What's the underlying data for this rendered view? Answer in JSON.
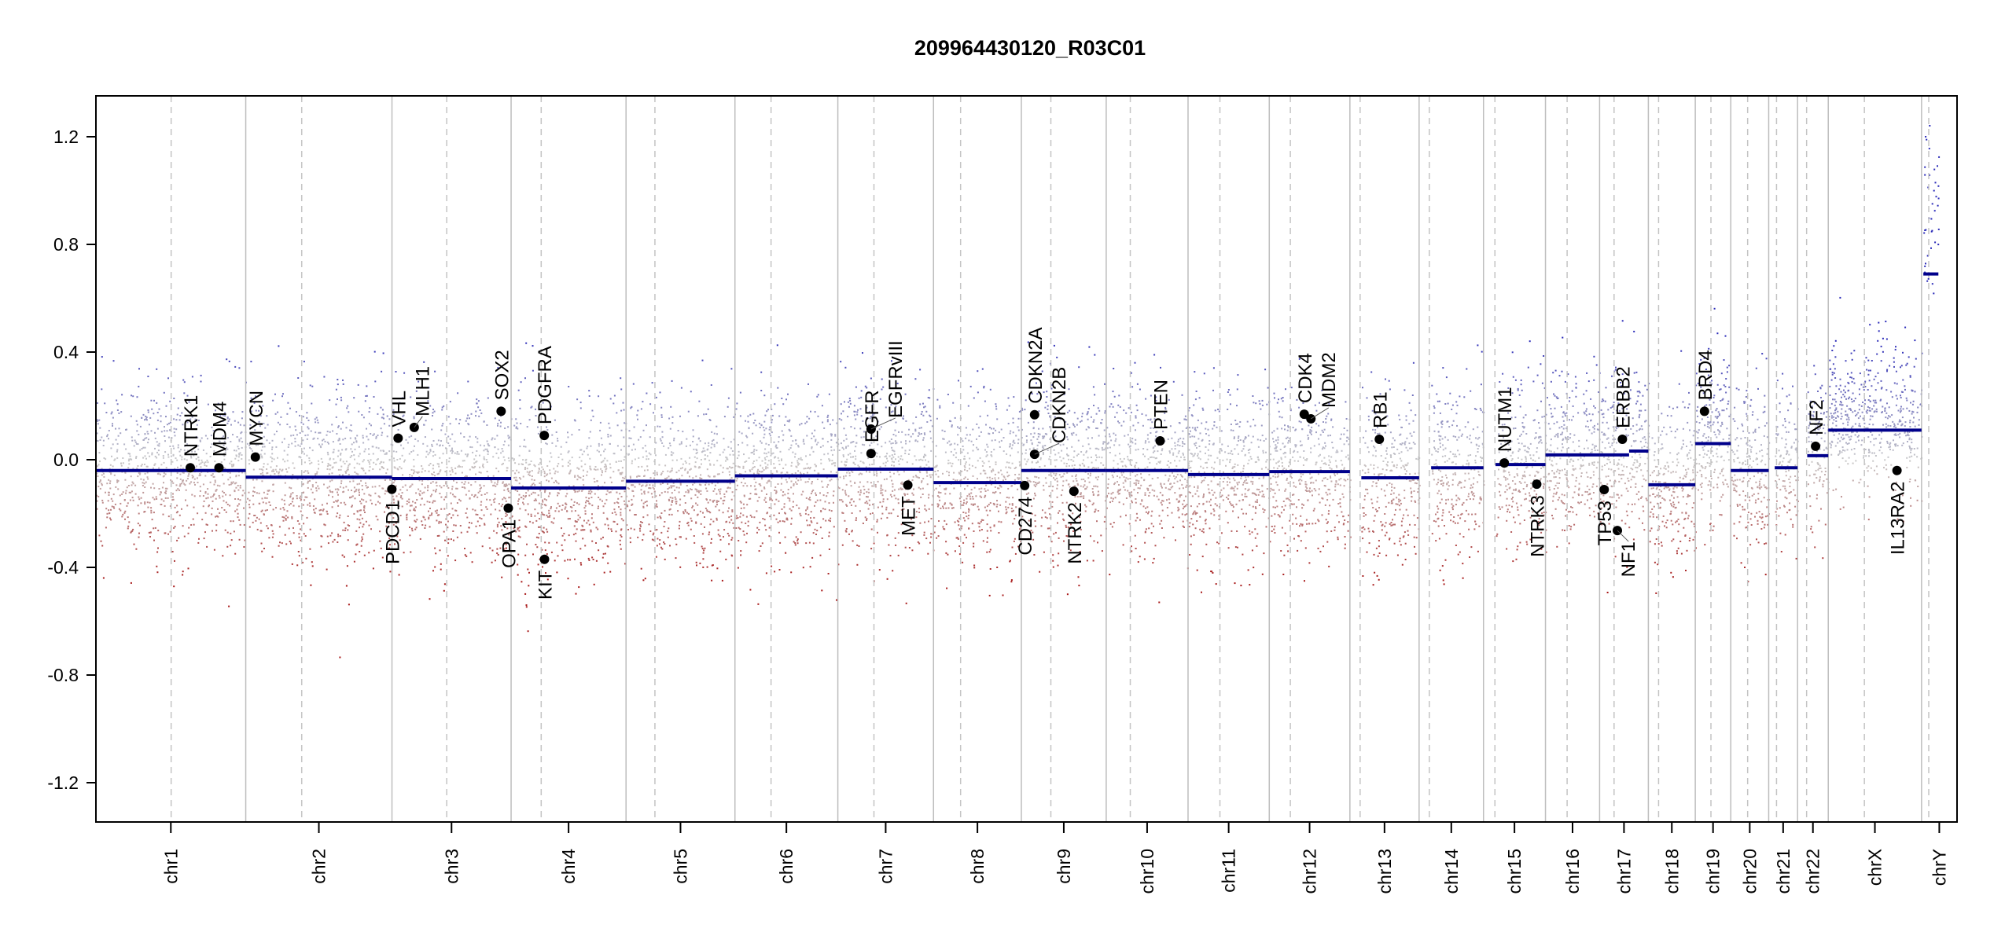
{
  "chart_data": {
    "type": "scatter",
    "title": "209964430120_R03C01",
    "xlabel": "",
    "ylabel": "",
    "ylim": [
      -1.35,
      1.35
    ],
    "yticks": [
      1.2,
      0.8,
      0.4,
      0.0,
      -0.4,
      -0.8,
      -1.2
    ],
    "ytick_labels": [
      "1.2",
      "0.8",
      "0.4",
      "0.0",
      "-0.4",
      "-0.8",
      "-1.2"
    ],
    "x_units": "Mb within chromosome",
    "chromosomes": [
      {
        "name": "chr1",
        "size": 249,
        "centromere": 125,
        "segments": [
          {
            "from": 0,
            "to": 249,
            "mean": -0.04
          }
        ]
      },
      {
        "name": "chr2",
        "size": 243,
        "centromere": 93,
        "segments": [
          {
            "from": 0,
            "to": 243,
            "mean": -0.065
          }
        ]
      },
      {
        "name": "chr3",
        "size": 198,
        "centromere": 91,
        "segments": [
          {
            "from": 0,
            "to": 198,
            "mean": -0.07
          }
        ]
      },
      {
        "name": "chr4",
        "size": 191,
        "centromere": 50,
        "segments": [
          {
            "from": 0,
            "to": 191,
            "mean": -0.105
          }
        ]
      },
      {
        "name": "chr5",
        "size": 181,
        "centromere": 48,
        "segments": [
          {
            "from": 0,
            "to": 181,
            "mean": -0.08
          }
        ]
      },
      {
        "name": "chr6",
        "size": 171,
        "centromere": 60,
        "segments": [
          {
            "from": 0,
            "to": 171,
            "mean": -0.06
          }
        ]
      },
      {
        "name": "chr7",
        "size": 159,
        "centromere": 60,
        "segments": [
          {
            "from": 0,
            "to": 159,
            "mean": -0.035
          }
        ]
      },
      {
        "name": "chr8",
        "size": 146,
        "centromere": 45,
        "segments": [
          {
            "from": 0,
            "to": 146,
            "mean": -0.085
          }
        ]
      },
      {
        "name": "chr9",
        "size": 141,
        "centromere": 49,
        "segments": [
          {
            "from": 0,
            "to": 141,
            "mean": -0.04
          }
        ]
      },
      {
        "name": "chr10",
        "size": 136,
        "centromere": 40,
        "segments": [
          {
            "from": 0,
            "to": 136,
            "mean": -0.04
          }
        ]
      },
      {
        "name": "chr11",
        "size": 135,
        "centromere": 53,
        "segments": [
          {
            "from": 0,
            "to": 135,
            "mean": -0.055
          }
        ]
      },
      {
        "name": "chr12",
        "size": 134,
        "centromere": 35,
        "segments": [
          {
            "from": 0,
            "to": 134,
            "mean": -0.044
          }
        ]
      },
      {
        "name": "chr13",
        "size": 115,
        "centromere": 17,
        "segments": [
          {
            "from": 19,
            "to": 115,
            "mean": -0.067
          }
        ]
      },
      {
        "name": "chr14",
        "size": 107,
        "centromere": 17,
        "segments": [
          {
            "from": 20,
            "to": 107,
            "mean": -0.03
          }
        ]
      },
      {
        "name": "chr15",
        "size": 103,
        "centromere": 19,
        "segments": [
          {
            "from": 20,
            "to": 103,
            "mean": -0.018
          }
        ]
      },
      {
        "name": "chr16",
        "size": 90,
        "centromere": 36,
        "segments": [
          {
            "from": 0,
            "to": 90,
            "mean": 0.018
          }
        ]
      },
      {
        "name": "chr17",
        "size": 81,
        "centromere": 24,
        "segments": [
          {
            "from": 0,
            "to": 49,
            "mean": 0.018
          },
          {
            "from": 49,
            "to": 81,
            "mean": 0.032
          }
        ]
      },
      {
        "name": "chr18",
        "size": 78,
        "centromere": 17,
        "segments": [
          {
            "from": 0,
            "to": 78,
            "mean": -0.093
          }
        ]
      },
      {
        "name": "chr19",
        "size": 59,
        "centromere": 26,
        "segments": [
          {
            "from": 0,
            "to": 59,
            "mean": 0.06
          }
        ]
      },
      {
        "name": "chr20",
        "size": 63,
        "centromere": 28,
        "segments": [
          {
            "from": 0,
            "to": 63,
            "mean": -0.04
          }
        ]
      },
      {
        "name": "chr21",
        "size": 48,
        "centromere": 13,
        "segments": [
          {
            "from": 10,
            "to": 48,
            "mean": -0.03
          }
        ]
      },
      {
        "name": "chr22",
        "size": 51,
        "centromere": 15,
        "segments": [
          {
            "from": 16,
            "to": 51,
            "mean": 0.015
          }
        ]
      },
      {
        "name": "chrX",
        "size": 155,
        "centromere": 60,
        "segments": [
          {
            "from": 0,
            "to": 155,
            "mean": 0.11
          }
        ]
      },
      {
        "name": "chrY",
        "size": 59,
        "centromere": 12,
        "segments": [
          {
            "from": 3,
            "to": 28,
            "mean": 0.69
          }
        ]
      }
    ],
    "genes": [
      {
        "name": "NTRK1",
        "chr": "chr1",
        "pos": 156.8,
        "value": -0.03
      },
      {
        "name": "MDM4",
        "chr": "chr1",
        "pos": 204.5,
        "value": -0.03
      },
      {
        "name": "MYCN",
        "chr": "chr2",
        "pos": 16,
        "value": 0.01
      },
      {
        "name": "PDCD1",
        "chr": "chr2",
        "pos": 242.8,
        "value": -0.11
      },
      {
        "name": "VHL",
        "chr": "chr3",
        "pos": 10.2,
        "value": 0.08
      },
      {
        "name": "MLH1",
        "chr": "chr3",
        "pos": 37,
        "value": 0.12
      },
      {
        "name": "SOX2",
        "chr": "chr3",
        "pos": 181.4,
        "value": 0.18
      },
      {
        "name": "OPA1",
        "chr": "chr3",
        "pos": 193.3,
        "value": -0.18
      },
      {
        "name": "PDGFRA",
        "chr": "chr4",
        "pos": 55.1,
        "value": 0.09
      },
      {
        "name": "KIT",
        "chr": "chr4",
        "pos": 55.5,
        "value": -0.37
      },
      {
        "name": "EGFR",
        "chr": "chr7",
        "pos": 55.2,
        "value": 0.023
      },
      {
        "name": "EGFRvIII",
        "chr": "chr7",
        "pos": 55.3,
        "value": 0.114
      },
      {
        "name": "MET",
        "chr": "chr7",
        "pos": 116.3,
        "value": -0.094
      },
      {
        "name": "CD274",
        "chr": "chr9",
        "pos": 5.5,
        "value": -0.096
      },
      {
        "name": "CDKN2A",
        "chr": "chr9",
        "pos": 21.97,
        "value": 0.167
      },
      {
        "name": "CDKN2B",
        "chr": "chr9",
        "pos": 22.0,
        "value": 0.02
      },
      {
        "name": "NTRK2",
        "chr": "chr9",
        "pos": 87.3,
        "value": -0.117
      },
      {
        "name": "PTEN",
        "chr": "chr10",
        "pos": 89.6,
        "value": 0.07
      },
      {
        "name": "CDK4",
        "chr": "chr12",
        "pos": 58.1,
        "value": 0.169
      },
      {
        "name": "MDM2",
        "chr": "chr12",
        "pos": 69.2,
        "value": 0.152
      },
      {
        "name": "RB1",
        "chr": "chr13",
        "pos": 48.9,
        "value": 0.076
      },
      {
        "name": "NUTM1",
        "chr": "chr15",
        "pos": 34.6,
        "value": -0.012
      },
      {
        "name": "NTRK3",
        "chr": "chr15",
        "pos": 88.5,
        "value": -0.091
      },
      {
        "name": "TP53",
        "chr": "chr17",
        "pos": 7.6,
        "value": -0.111
      },
      {
        "name": "NF1",
        "chr": "chr17",
        "pos": 29.5,
        "value": -0.263
      },
      {
        "name": "ERBB2",
        "chr": "chr17",
        "pos": 37.8,
        "value": 0.076
      },
      {
        "name": "BRD4",
        "chr": "chr19",
        "pos": 15.3,
        "value": 0.18
      },
      {
        "name": "NF2",
        "chr": "chr22",
        "pos": 29.9,
        "value": 0.05
      },
      {
        "name": "IL13RA2",
        "chr": "chrX",
        "pos": 114.2,
        "value": -0.04
      }
    ],
    "probe_noise_sd": 0.15,
    "colors": {
      "gain": "#2a2ab8",
      "neutral": "#c8c8c8",
      "loss": "#a81818",
      "segment": "#00008b",
      "gene_dot": "#000000",
      "chr_border": "#bdbdbd",
      "centromere": "#c4c4c4"
    }
  }
}
